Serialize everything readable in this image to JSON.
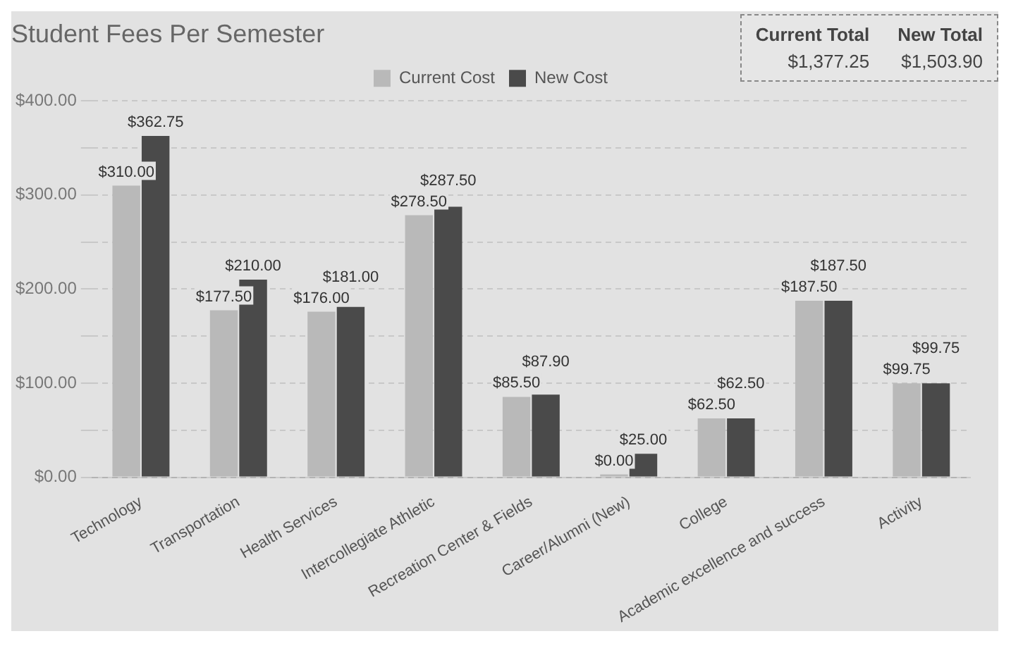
{
  "chart_data": {
    "type": "bar",
    "title": "Student Fees Per Semester",
    "categories": [
      "Technology",
      "Transportation",
      "Health Services",
      "Intercollegiate Athletic",
      "Recreation Center & Fields",
      "Career/Alumni (New)",
      "College",
      "Academic excellence and success",
      "Activity"
    ],
    "series": [
      {
        "name": "Current Cost",
        "color": "#b9b9b9",
        "values": [
          310,
          177.5,
          176,
          278.5,
          85.5,
          0,
          62.5,
          187.5,
          99.75
        ],
        "value_labels": [
          "$310.00",
          "$177.50",
          "$176.00",
          "$278.50",
          "$85.50",
          "$0.00",
          "$62.50",
          "$187.50",
          "$99.75"
        ]
      },
      {
        "name": "New Cost",
        "color": "#4a4a4a",
        "values": [
          362.75,
          210,
          181,
          287.5,
          87.9,
          25,
          62.5,
          187.5,
          99.75
        ],
        "value_labels": [
          "$362.75",
          "$210.00",
          "$181.00",
          "$287.50",
          "$87.90",
          "$25.00",
          "$62.50",
          "$187.50",
          "$99.75"
        ]
      }
    ],
    "ylim": [
      0,
      400
    ],
    "yticks": [
      {
        "value": 0,
        "label": "$0.00"
      },
      {
        "value": 50,
        "label": null
      },
      {
        "value": 100,
        "label": "$100.00"
      },
      {
        "value": 150,
        "label": null
      },
      {
        "value": 200,
        "label": "$200.00"
      },
      {
        "value": 250,
        "label": null
      },
      {
        "value": 300,
        "label": "$300.00"
      },
      {
        "value": 350,
        "label": null
      },
      {
        "value": 400,
        "label": "$400.00"
      }
    ],
    "grid": "y",
    "legend": "top",
    "annotations": [
      "Current Total",
      "$1,377.25",
      "New Total",
      "$1,503.90"
    ]
  }
}
